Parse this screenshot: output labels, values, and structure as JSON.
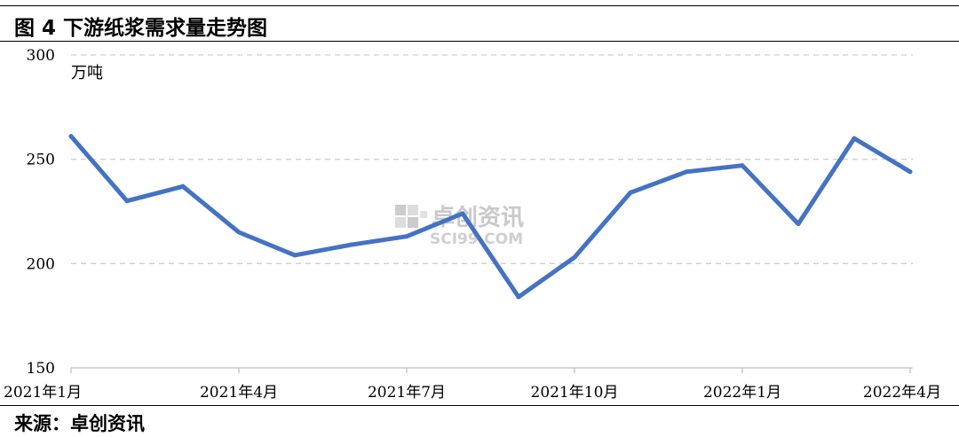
{
  "header": {
    "title": "图 4  下游纸浆需求量走势图"
  },
  "footer": {
    "source": "来源：卓创资讯"
  },
  "watermark": {
    "main": "卓创资讯",
    "sub": "SCI99.COM"
  },
  "chart_data": {
    "type": "line",
    "title": "图 4  下游纸浆需求量走势图",
    "unit": "万吨",
    "ylim": [
      150,
      300
    ],
    "yticks": [
      150,
      200,
      250,
      300
    ],
    "grid": true,
    "x": [
      "2021年1月",
      "2021年2月",
      "2021年3月",
      "2021年4月",
      "2021年5月",
      "2021年6月",
      "2021年7月",
      "2021年8月",
      "2021年9月",
      "2021年10月",
      "2021年11月",
      "2021年12月",
      "2022年1月",
      "2022年2月",
      "2022年3月",
      "2022年4月"
    ],
    "x_tick_labels": [
      "2021年1月",
      "2021年4月",
      "2021年7月",
      "2021年10月",
      "2022年1月",
      "2022年4月"
    ],
    "series": [
      {
        "values": [
          261,
          230,
          237,
          215,
          204,
          209,
          213,
          224,
          184,
          203,
          234,
          244,
          247,
          219,
          260,
          244
        ],
        "color": "#4472C4"
      }
    ]
  }
}
